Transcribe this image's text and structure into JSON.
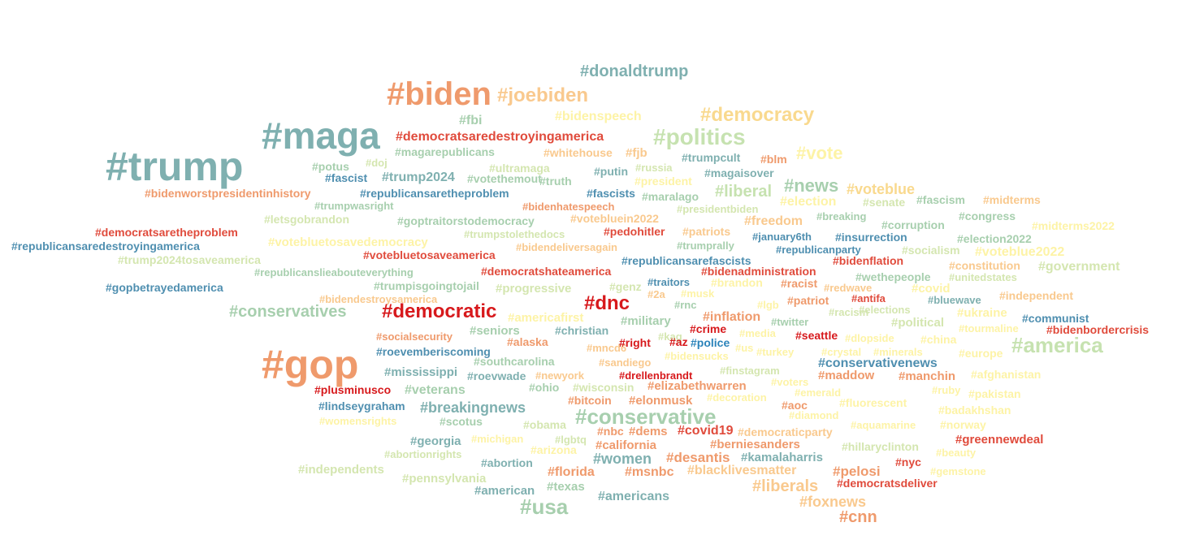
{
  "palette": {
    "teal": "#7fb0b0",
    "sage": "#a7cfae",
    "pale_green": "#d4e6b0",
    "cream": "#fdf3a6",
    "peach": "#f9c98e",
    "orange": "#ef9a6c",
    "red": "#e04b3c",
    "crimson": "#d7191c",
    "blue": "#2b83ba",
    "steel": "#4f8fb0"
  },
  "tags": [
    {
      "text": "#donaldtrump",
      "color": "#7fb0b0"
    },
    {
      "text": "#biden",
      "color": "#ef9a6c"
    },
    {
      "text": "#joebiden",
      "color": "#f9c98e"
    },
    {
      "text": "#bidenspeech",
      "color": "#fdf3a6"
    },
    {
      "text": "#democracy",
      "color": "#f9d98e"
    },
    {
      "text": "#maga",
      "color": "#7fb0b0"
    },
    {
      "text": "#fbi",
      "color": "#a7cfae"
    },
    {
      "text": "#democratsaredestroyingamerica",
      "color": "#e04b3c"
    },
    {
      "text": "#politics",
      "color": "#c6e2b0"
    },
    {
      "text": "#trump",
      "color": "#7fb0b0"
    },
    {
      "text": "#magarepublicans",
      "color": "#a7cfae"
    },
    {
      "text": "#whitehouse",
      "color": "#f9c98e"
    },
    {
      "text": "#fjb",
      "color": "#f9c98e"
    },
    {
      "text": "#trumpcult",
      "color": "#7fb0b0"
    },
    {
      "text": "#blm",
      "color": "#ef9a6c"
    },
    {
      "text": "#vote",
      "color": "#fdf3a6"
    },
    {
      "text": "#potus",
      "color": "#a7cfae"
    },
    {
      "text": "#doj",
      "color": "#d4e6b0"
    },
    {
      "text": "#ultramaga",
      "color": "#d4e6b0"
    },
    {
      "text": "#russia",
      "color": "#d4e6b0"
    },
    {
      "text": "#fascist",
      "color": "#4f8fb0"
    },
    {
      "text": "#trump2024",
      "color": "#7fb0b0"
    },
    {
      "text": "#votethemout",
      "color": "#a7cfae"
    },
    {
      "text": "#truth",
      "color": "#a7cfae"
    },
    {
      "text": "#putin",
      "color": "#7fb0b0"
    },
    {
      "text": "#president",
      "color": "#fdf3a6"
    },
    {
      "text": "#magaisover",
      "color": "#7fb0b0"
    },
    {
      "text": "#news",
      "color": "#a7cfae"
    },
    {
      "text": "#voteblue",
      "color": "#f9d98e"
    },
    {
      "text": "#bidenworstpresidentinhistory",
      "color": "#ef9a6c"
    },
    {
      "text": "#republicansaretheproblem",
      "color": "#4f8fb0"
    },
    {
      "text": "#fascists",
      "color": "#4f8fb0"
    },
    {
      "text": "#maralago",
      "color": "#a7cfae"
    },
    {
      "text": "#liberal",
      "color": "#c6e2b0"
    },
    {
      "text": "#election",
      "color": "#fdf3a6"
    },
    {
      "text": "#senate",
      "color": "#d4e6b0"
    },
    {
      "text": "#fascism",
      "color": "#a7cfae"
    },
    {
      "text": "#midterms",
      "color": "#f9c98e"
    },
    {
      "text": "#trumpwasright",
      "color": "#a7cfae"
    },
    {
      "text": "#bidenhatespeech",
      "color": "#ef9a6c"
    },
    {
      "text": "#presidentbiden",
      "color": "#d4e6b0"
    },
    {
      "text": "#letsgobrandon",
      "color": "#d4e6b0"
    },
    {
      "text": "#goptraitorstodemocracy",
      "color": "#a7cfae"
    },
    {
      "text": "#votebluein2022",
      "color": "#f9c98e"
    },
    {
      "text": "#freedom",
      "color": "#f9c98e"
    },
    {
      "text": "#breaking",
      "color": "#a7cfae"
    },
    {
      "text": "#congress",
      "color": "#a7cfae"
    },
    {
      "text": "#democratsaretheproblem",
      "color": "#e04b3c"
    },
    {
      "text": "#pedohitler",
      "color": "#e04b3c"
    },
    {
      "text": "#patriots",
      "color": "#f9c98e"
    },
    {
      "text": "#corruption",
      "color": "#a7cfae"
    },
    {
      "text": "#midterms2022",
      "color": "#fdf3a6"
    },
    {
      "text": "#republicansaredestroyingamerica",
      "color": "#4f8fb0"
    },
    {
      "text": "#trumpstolethedocs",
      "color": "#d4e6b0"
    },
    {
      "text": "#january6th",
      "color": "#4f8fb0"
    },
    {
      "text": "#insurrection",
      "color": "#4f8fb0"
    },
    {
      "text": "#election2022",
      "color": "#a7cfae"
    },
    {
      "text": "#votebluetosavedemocracy",
      "color": "#fdf3a6"
    },
    {
      "text": "#bidendeliversagain",
      "color": "#f9c98e"
    },
    {
      "text": "#trumprally",
      "color": "#a7cfae"
    },
    {
      "text": "#republicanparty",
      "color": "#4f8fb0"
    },
    {
      "text": "#socialism",
      "color": "#d4e6b0"
    },
    {
      "text": "#trump2024tosaveamerica",
      "color": "#d4e6b0"
    },
    {
      "text": "#votebluetosaveamerica",
      "color": "#e04b3c"
    },
    {
      "text": "#republicansarefascists",
      "color": "#4f8fb0"
    },
    {
      "text": "#voteblue2022",
      "color": "#fdf3a6"
    },
    {
      "text": "#republicanslieabouteverything",
      "color": "#a7cfae"
    },
    {
      "text": "#democratshateamerica",
      "color": "#e04b3c"
    },
    {
      "text": "#bidenadministration",
      "color": "#e04b3c"
    },
    {
      "text": "#bidenflation",
      "color": "#e04b3c"
    },
    {
      "text": "#constitution",
      "color": "#f9c98e"
    },
    {
      "text": "#government",
      "color": "#d4e6b0"
    },
    {
      "text": "#traitors",
      "color": "#4f8fb0"
    },
    {
      "text": "#brandon",
      "color": "#fdf3a6"
    },
    {
      "text": "#wethepeople",
      "color": "#a7cfae"
    },
    {
      "text": "#unitedstates",
      "color": "#d4e6b0"
    },
    {
      "text": "#gopbetrayedamerica",
      "color": "#4f8fb0"
    },
    {
      "text": "#trumpisgoingtojail",
      "color": "#a7cfae"
    },
    {
      "text": "#progressive",
      "color": "#d4e6b0"
    },
    {
      "text": "#genz",
      "color": "#d4e6b0"
    },
    {
      "text": "#2a",
      "color": "#f9c98e"
    },
    {
      "text": "#musk",
      "color": "#fdf3a6"
    },
    {
      "text": "#racist",
      "color": "#ef9a6c"
    },
    {
      "text": "#redwave",
      "color": "#f9c98e"
    },
    {
      "text": "#covid",
      "color": "#fdf3a6"
    },
    {
      "text": "#bidendestroysamerica",
      "color": "#f9c98e"
    },
    {
      "text": "#rnc",
      "color": "#a7cfae"
    },
    {
      "text": "#lgb",
      "color": "#fdf3a6"
    },
    {
      "text": "#patriot",
      "color": "#ef9a6c"
    },
    {
      "text": "#antifa",
      "color": "#e04b3c"
    },
    {
      "text": "#bluewave",
      "color": "#7fb0b0"
    },
    {
      "text": "#independent",
      "color": "#f9c98e"
    },
    {
      "text": "#conservatives",
      "color": "#a7cfae"
    },
    {
      "text": "#democratic",
      "color": "#d7191c"
    },
    {
      "text": "#americafirst",
      "color": "#fdf3a6"
    },
    {
      "text": "#dnc",
      "color": "#d7191c"
    },
    {
      "text": "#inflation",
      "color": "#ef9a6c"
    },
    {
      "text": "#racism",
      "color": "#d4e6b0"
    },
    {
      "text": "#elections",
      "color": "#d4e6b0"
    },
    {
      "text": "#ukraine",
      "color": "#fdf3a6"
    },
    {
      "text": "#communist",
      "color": "#4f8fb0"
    },
    {
      "text": "#military",
      "color": "#a7cfae"
    },
    {
      "text": "#twitter",
      "color": "#a7cfae"
    },
    {
      "text": "#political",
      "color": "#d4e6b0"
    },
    {
      "text": "#tourmaline",
      "color": "#fdf3a6"
    },
    {
      "text": "#bidenbordercrisis",
      "color": "#e04b3c"
    },
    {
      "text": "#seniors",
      "color": "#a7cfae"
    },
    {
      "text": "#christian",
      "color": "#7fb0b0"
    },
    {
      "text": "#crime",
      "color": "#d7191c"
    },
    {
      "text": "#media",
      "color": "#fdf3a6"
    },
    {
      "text": "#seattle",
      "color": "#d7191c"
    },
    {
      "text": "#socialsecurity",
      "color": "#ef9a6c"
    },
    {
      "text": "#kag",
      "color": "#d4e6b0"
    },
    {
      "text": "#dlopside",
      "color": "#fdf3a6"
    },
    {
      "text": "#china",
      "color": "#fdf3a6"
    },
    {
      "text": "#alaska",
      "color": "#ef9a6c"
    },
    {
      "text": "#mncd6",
      "color": "#f9c98e"
    },
    {
      "text": "#right",
      "color": "#d7191c"
    },
    {
      "text": "#az",
      "color": "#d7191c"
    },
    {
      "text": "#police",
      "color": "#2b83ba"
    },
    {
      "text": "#us",
      "color": "#fdf3a6"
    },
    {
      "text": "#turkey",
      "color": "#fdf3a6"
    },
    {
      "text": "#crystal",
      "color": "#fdf3a6"
    },
    {
      "text": "#minerals",
      "color": "#fdf3a6"
    },
    {
      "text": "#europe",
      "color": "#fdf3a6"
    },
    {
      "text": "#america",
      "color": "#c6e2b0"
    },
    {
      "text": "#roevemberiscoming",
      "color": "#4f8fb0"
    },
    {
      "text": "#bidensucks",
      "color": "#fdf3a6"
    },
    {
      "text": "#gop",
      "color": "#ef9a6c"
    },
    {
      "text": "#southcarolina",
      "color": "#a7cfae"
    },
    {
      "text": "#sandiego",
      "color": "#f9c98e"
    },
    {
      "text": "#conservativenews",
      "color": "#4f8fb0"
    },
    {
      "text": "#mississippi",
      "color": "#7fb0b0"
    },
    {
      "text": "#roevwade",
      "color": "#7fb0b0"
    },
    {
      "text": "#newyork",
      "color": "#f9c98e"
    },
    {
      "text": "#drellenbrandt",
      "color": "#d7191c"
    },
    {
      "text": "#finstagram",
      "color": "#d4e6b0"
    },
    {
      "text": "#maddow",
      "color": "#ef9a6c"
    },
    {
      "text": "#manchin",
      "color": "#ef9a6c"
    },
    {
      "text": "#afghanistan",
      "color": "#fdf3a6"
    },
    {
      "text": "#voters",
      "color": "#fdf3a6"
    },
    {
      "text": "#plusminusco",
      "color": "#d7191c"
    },
    {
      "text": "#veterans",
      "color": "#a7cfae"
    },
    {
      "text": "#ohio",
      "color": "#a7cfae"
    },
    {
      "text": "#wisconsin",
      "color": "#d4e6b0"
    },
    {
      "text": "#elizabethwarren",
      "color": "#ef9a6c"
    },
    {
      "text": "#emerald",
      "color": "#fdf3a6"
    },
    {
      "text": "#ruby",
      "color": "#fdf3a6"
    },
    {
      "text": "#pakistan",
      "color": "#fdf3a6"
    },
    {
      "text": "#lindseygraham",
      "color": "#4f8fb0"
    },
    {
      "text": "#breakingnews",
      "color": "#7fb0b0"
    },
    {
      "text": "#bitcoin",
      "color": "#ef9a6c"
    },
    {
      "text": "#elonmusk",
      "color": "#ef9a6c"
    },
    {
      "text": "#decoration",
      "color": "#fdf3a6"
    },
    {
      "text": "#aoc",
      "color": "#ef9a6c"
    },
    {
      "text": "#fluorescent",
      "color": "#fdf3a6"
    },
    {
      "text": "#badakhshan",
      "color": "#fdf3a6"
    },
    {
      "text": "#diamond",
      "color": "#fdf3a6"
    },
    {
      "text": "#womensrights",
      "color": "#fdf3a6"
    },
    {
      "text": "#scotus",
      "color": "#a7cfae"
    },
    {
      "text": "#obama",
      "color": "#d4e6b0"
    },
    {
      "text": "#conservative",
      "color": "#a7cfae"
    },
    {
      "text": "#aquamarine",
      "color": "#fdf3a6"
    },
    {
      "text": "#norway",
      "color": "#fdf3a6"
    },
    {
      "text": "#nbc",
      "color": "#ef9a6c"
    },
    {
      "text": "#dems",
      "color": "#ef9a6c"
    },
    {
      "text": "#covid19",
      "color": "#e04b3c"
    },
    {
      "text": "#democraticparty",
      "color": "#f9c98e"
    },
    {
      "text": "#georgia",
      "color": "#7fb0b0"
    },
    {
      "text": "#michigan",
      "color": "#fdf3a6"
    },
    {
      "text": "#lgbtq",
      "color": "#d4e6b0"
    },
    {
      "text": "#greennewdeal",
      "color": "#e04b3c"
    },
    {
      "text": "#california",
      "color": "#ef9a6c"
    },
    {
      "text": "#berniesanders",
      "color": "#ef9a6c"
    },
    {
      "text": "#hillaryclinton",
      "color": "#d4e6b0"
    },
    {
      "text": "#abortionrights",
      "color": "#d4e6b0"
    },
    {
      "text": "#arizona",
      "color": "#fdf3a6"
    },
    {
      "text": "#beauty",
      "color": "#fdf3a6"
    },
    {
      "text": "#women",
      "color": "#7fb0b0"
    },
    {
      "text": "#desantis",
      "color": "#ef9a6c"
    },
    {
      "text": "#kamalaharris",
      "color": "#7fb0b0"
    },
    {
      "text": "#abortion",
      "color": "#7fb0b0"
    },
    {
      "text": "#nyc",
      "color": "#e04b3c"
    },
    {
      "text": "#independents",
      "color": "#d4e6b0"
    },
    {
      "text": "#florida",
      "color": "#ef9a6c"
    },
    {
      "text": "#msnbc",
      "color": "#ef9a6c"
    },
    {
      "text": "#blacklivesmatter",
      "color": "#f9c98e"
    },
    {
      "text": "#pelosi",
      "color": "#ef9a6c"
    },
    {
      "text": "#gemstone",
      "color": "#fdf3a6"
    },
    {
      "text": "#pennsylvania",
      "color": "#d4e6b0"
    },
    {
      "text": "#texas",
      "color": "#a7cfae"
    },
    {
      "text": "#american",
      "color": "#7fb0b0"
    },
    {
      "text": "#democratsdeliver",
      "color": "#e04b3c"
    },
    {
      "text": "#liberals",
      "color": "#f9c98e"
    },
    {
      "text": "#americans",
      "color": "#7fb0b0"
    },
    {
      "text": "#usa",
      "color": "#a7cfae"
    },
    {
      "text": "#foxnews",
      "color": "#f9c98e"
    },
    {
      "text": "#cnn",
      "color": "#ef9a6c"
    }
  ]
}
